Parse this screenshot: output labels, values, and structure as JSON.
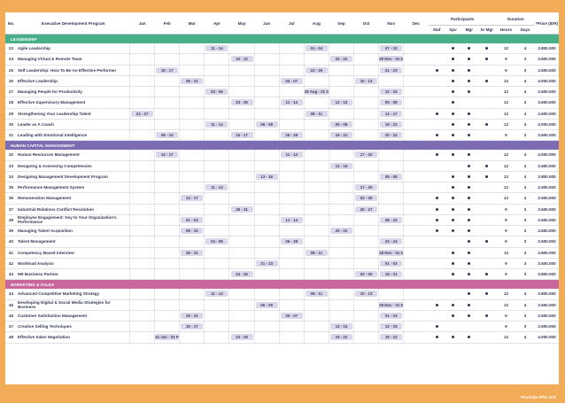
{
  "headers": {
    "no": "No.",
    "program": "Executive Development Program",
    "months": [
      "Jan",
      "Feb",
      "Mar",
      "Apr",
      "May",
      "Jun",
      "Jul",
      "Aug",
      "Sep",
      "Oct",
      "Nov",
      "Dec"
    ],
    "participants": "Participants",
    "p_cols": [
      "Staf",
      "Spv",
      "Mgr",
      "Sr Mgr"
    ],
    "duration": "Duration",
    "d_cols": [
      "Hours",
      "Days"
    ],
    "price": "*Price (IDR)"
  },
  "sections": [
    {
      "title": "LEADERSHIP",
      "color": "#47b089",
      "cls": "green",
      "rows": [
        {
          "no": "23",
          "name": "Agile Leadership",
          "sched": {
            "3": "11 - 14",
            "7": "01 - 04",
            "10": "07 - 10"
          },
          "p": [
            0,
            1,
            1,
            1
          ],
          "hours": "12",
          "days": "4",
          "price": "3.800.000"
        },
        {
          "no": "24",
          "name": "Managing Virtual & Remote Team",
          "sched": {
            "4": "10 - 12",
            "8": "20 - 22",
            "10": "29 Nov - 01 Dec"
          },
          "p": [
            0,
            1,
            1,
            1
          ],
          "hours": "9",
          "days": "3",
          "price": "3.800.000"
        },
        {
          "no": "25",
          "name": "Self Leadership: How To Be An Effective Performer",
          "sched": {
            "1": "15 - 17",
            "7": "23 - 25",
            "10": "21 - 23"
          },
          "p": [
            1,
            1,
            1,
            0
          ],
          "hours": "9",
          "days": "3",
          "price": "3.500.000"
        },
        {
          "no": "26",
          "name": "Effective Leadership",
          "sched": {
            "2": "28 - 31",
            "6": "04 - 07",
            "9": "10 - 13"
          },
          "p": [
            0,
            1,
            1,
            1
          ],
          "hours": "12",
          "days": "4",
          "price": "4.000.000"
        },
        {
          "no": "27",
          "name": "Managing People for Productivity",
          "sched": {
            "3": "03 - 06",
            "7": "29 Aug - 01 Sep",
            "10": "12 - 15"
          },
          "p": [
            0,
            1,
            1,
            0
          ],
          "hours": "12",
          "days": "4",
          "price": "3.600.000"
        },
        {
          "no": "28",
          "name": "Effective Supervisory Management",
          "sched": {
            "4": "23 - 26",
            "6": "11 - 14",
            "8": "12 - 15",
            "10": "05 - 08"
          },
          "p": [
            0,
            1,
            0,
            0
          ],
          "hours": "12",
          "days": "4",
          "price": "3.600.000"
        },
        {
          "no": "29",
          "name": "Strengthening Your Leadership Talent",
          "sched": {
            "0": "24 - 27",
            "7": "08 - 11",
            "10": "14 - 17"
          },
          "p": [
            1,
            1,
            1,
            0
          ],
          "hours": "12",
          "days": "4",
          "price": "3.600.000"
        },
        {
          "no": "30",
          "name": "Leader as A Coach",
          "sched": {
            "3": "11 - 14",
            "5": "06 - 09",
            "8": "05 - 08",
            "10": "19 - 22"
          },
          "p": [
            0,
            1,
            1,
            1
          ],
          "hours": "12",
          "days": "4",
          "price": "4.000.000"
        },
        {
          "no": "31",
          "name": "Leading with Emotional Intelligence",
          "sched": {
            "1": "08 - 10",
            "4": "15 - 17",
            "6": "26 - 28",
            "8": "19 - 21",
            "10": "20 - 22"
          },
          "p": [
            1,
            1,
            1,
            0
          ],
          "hours": "9",
          "days": "3",
          "price": "3.600.000"
        }
      ]
    },
    {
      "title": "HUMAN CAPITAL MANAGEMENT",
      "color": "#7d6bb4",
      "cls": "purple",
      "rows": [
        {
          "no": "32",
          "name": "Human Resources Management",
          "sched": {
            "1": "14 - 17",
            "6": "11 - 14",
            "9": "17 - 20"
          },
          "p": [
            1,
            1,
            1,
            0
          ],
          "hours": "12",
          "days": "4",
          "price": "4.000.000"
        },
        {
          "no": "33",
          "name": "Designing & Assessing Competencies",
          "sched": {
            "8": "12 - 15"
          },
          "p": [
            0,
            0,
            1,
            1
          ],
          "hours": "12",
          "days": "4",
          "price": "3.500.000"
        },
        {
          "no": "34",
          "name": "Designing Management Development Program",
          "sched": {
            "5": "13 - 16",
            "10": "05 - 08"
          },
          "p": [
            0,
            1,
            1,
            1
          ],
          "hours": "12",
          "days": "4",
          "price": "3.800.000"
        },
        {
          "no": "35",
          "name": "Performance Management System",
          "sched": {
            "3": "11 - 14",
            "9": "17 - 20"
          },
          "p": [
            0,
            1,
            1,
            0
          ],
          "hours": "12",
          "days": "4",
          "price": "3.500.000"
        },
        {
          "no": "36",
          "name": "Remuneration Management",
          "sched": {
            "2": "14 - 17",
            "9": "03 - 06"
          },
          "p": [
            1,
            1,
            1,
            0
          ],
          "hours": "12",
          "days": "4",
          "price": "3.500.000"
        },
        {
          "no": "37",
          "name": "Industrial Relations Conflict Resolution",
          "sched": {
            "4": "29 - 31",
            "9": "25 - 27"
          },
          "p": [
            1,
            1,
            1,
            0
          ],
          "hours": "9",
          "days": "3",
          "price": "3.500.000"
        },
        {
          "no": "38",
          "name": "Employee Engagement: Key to Your Organization's Performance",
          "sched": {
            "2": "01 - 03",
            "6": "12 - 14",
            "10": "08 - 10"
          },
          "p": [
            1,
            1,
            1,
            0
          ],
          "hours": "9",
          "days": "3",
          "price": "3.500.000"
        },
        {
          "no": "39",
          "name": "Managing Talent Acquisition",
          "sched": {
            "2": "08 - 10",
            "8": "20 - 22"
          },
          "p": [
            1,
            1,
            1,
            0
          ],
          "hours": "9",
          "days": "3",
          "price": "3.600.000"
        },
        {
          "no": "40",
          "name": "Talent Management",
          "sched": {
            "3": "04 - 06",
            "6": "26 - 28",
            "10": "22 - 24"
          },
          "p": [
            0,
            0,
            1,
            1
          ],
          "hours": "9",
          "days": "3",
          "price": "3.500.000"
        },
        {
          "no": "41",
          "name": "Competency Based Interview",
          "sched": {
            "2": "28 - 31",
            "7": "08 - 11",
            "10": "28 Nov - 01 Dec"
          },
          "p": [
            0,
            1,
            1,
            0
          ],
          "hours": "12",
          "days": "4",
          "price": "3.800.000"
        },
        {
          "no": "42",
          "name": "Workload Analysis",
          "sched": {
            "5": "21 - 23",
            "10": "01 - 03"
          },
          "p": [
            0,
            1,
            1,
            0
          ],
          "hours": "9",
          "days": "3",
          "price": "3.500.000"
        },
        {
          "no": "43",
          "name": "HR Business Partner",
          "sched": {
            "4": "24 - 26",
            "9": "03 - 05",
            "10": "19 - 21"
          },
          "p": [
            0,
            1,
            1,
            1
          ],
          "hours": "9",
          "days": "3",
          "price": "3.800.000"
        }
      ]
    },
    {
      "title": "MARKETING & SALES",
      "color": "#c8679c",
      "cls": "pink",
      "rows": [
        {
          "no": "44",
          "name": "Advanced Competitive Marketing Strategy",
          "sched": {
            "3": "11 - 14",
            "7": "08 - 11",
            "9": "10 - 13"
          },
          "p": [
            0,
            0,
            1,
            1
          ],
          "hours": "12",
          "days": "4",
          "price": "3.800.000"
        },
        {
          "no": "45",
          "name": "Developing Digital & Social Media Strategies for Business",
          "sched": {
            "5": "06 - 09",
            "10": "28 Nov - 01 Dec"
          },
          "p": [
            1,
            1,
            1,
            0
          ],
          "hours": "12",
          "days": "4",
          "price": "3.500.000"
        },
        {
          "no": "46",
          "name": "Customer Satisfaction Management",
          "sched": {
            "2": "29 - 31",
            "6": "05 - 07",
            "10": "01 - 03"
          },
          "p": [
            0,
            1,
            1,
            1
          ],
          "hours": "9",
          "days": "3",
          "price": "3.500.000"
        },
        {
          "no": "47",
          "name": "Creative Selling Techniques",
          "sched": {
            "2": "15 - 17",
            "8": "13 - 15",
            "10": "13 - 15"
          },
          "p": [
            1,
            0,
            0,
            0
          ],
          "hours": "9",
          "days": "3",
          "price": "3.500.000"
        },
        {
          "no": "48",
          "name": "Effective Sales Negotiation",
          "sched": {
            "1": "31 Jan - 03 Feb",
            "4": "23 - 26",
            "8": "19 - 22",
            "10": "19 - 22"
          },
          "p": [
            1,
            1,
            1,
            0
          ],
          "hours": "12",
          "days": "4",
          "price": "4.000.000"
        }
      ]
    }
  ],
  "footnote": "*Exclude PPN 11%"
}
